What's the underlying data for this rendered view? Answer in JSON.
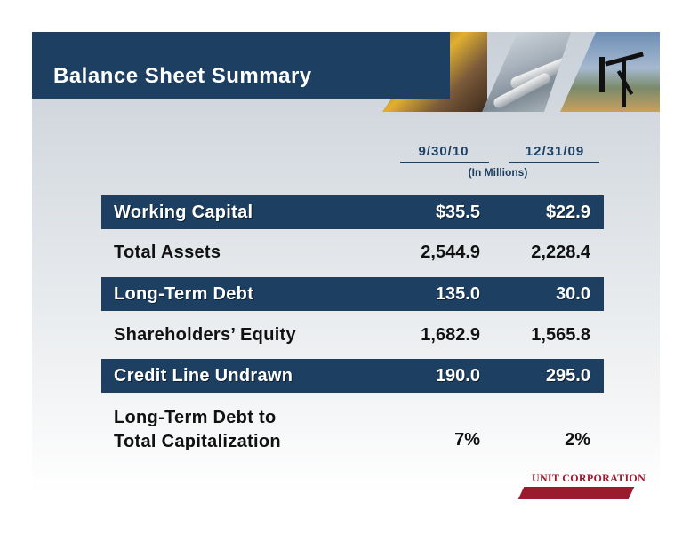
{
  "title": "Balance Sheet Summary",
  "columns": [
    "9/30/10",
    "12/31/09"
  ],
  "units_note": "(In Millions)",
  "rows": [
    {
      "label": "Working Capital",
      "v1": "$35.5",
      "v2": "$22.9",
      "highlight": true
    },
    {
      "label": "Total Assets",
      "v1": "2,544.9",
      "v2": "2,228.4",
      "highlight": false
    },
    {
      "label": "Long-Term Debt",
      "v1": "135.0",
      "v2": "30.0",
      "highlight": true
    },
    {
      "label": "Shareholders’ Equity",
      "v1": "1,682.9",
      "v2": "1,565.8",
      "highlight": false
    },
    {
      "label": "Credit Line Undrawn",
      "v1": "190.0",
      "v2": "295.0",
      "highlight": true
    },
    {
      "label_line1": "Long-Term Debt to",
      "label_line2": "Total Capitalization",
      "v1": "7%",
      "v2": "2%",
      "highlight": false
    }
  ],
  "logo": "UNIT CORPORATION",
  "colors": {
    "band": "#1d3f62",
    "logo": "#9b1b2e"
  }
}
